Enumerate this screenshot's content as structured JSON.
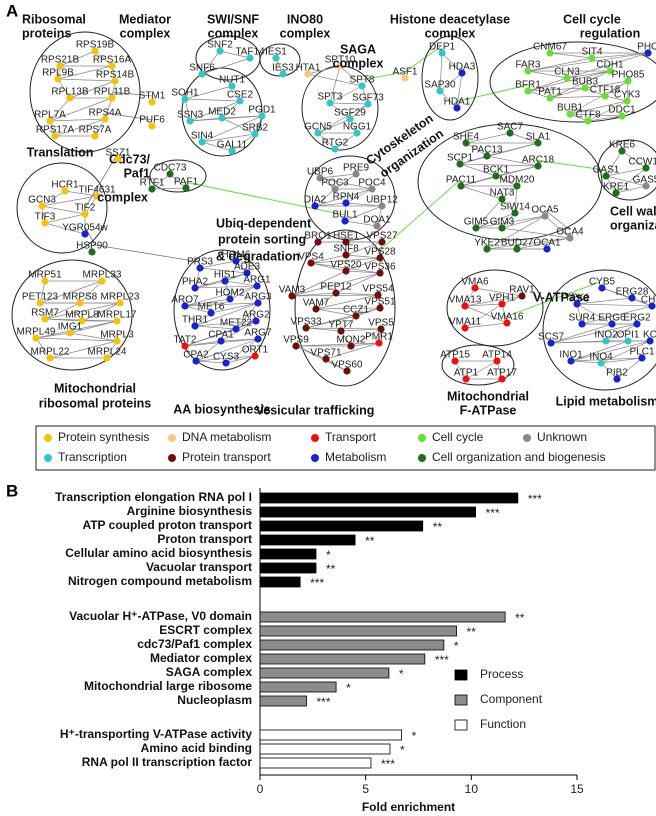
{
  "panel_a": {
    "label": "A",
    "clusters": [
      {
        "title": [
          "Ribosomal",
          "proteins"
        ],
        "nodes": [
          {
            "name": "RPS19B",
            "color": "#f4c20d"
          },
          {
            "name": "RPS21B",
            "color": "#f4c20d"
          },
          {
            "name": "RPS16A",
            "color": "#f4c20d"
          },
          {
            "name": "RPL9B",
            "color": "#f4c20d"
          },
          {
            "name": "RPS14B",
            "color": "#f4c20d"
          },
          {
            "name": "RPL13B",
            "color": "#f4c20d"
          },
          {
            "name": "RPL11B",
            "color": "#f4c20d"
          },
          {
            "name": "RPL7A",
            "color": "#f4c20d"
          },
          {
            "name": "RPS4A",
            "color": "#f4c20d"
          },
          {
            "name": "RPS17A",
            "color": "#f4c20d"
          },
          {
            "name": "RPS7A",
            "color": "#f4c20d"
          }
        ]
      },
      {
        "title": [
          "Mediator",
          "complex"
        ],
        "nodes": [
          {
            "name": "NUT1",
            "color": "#33c6c6"
          },
          {
            "name": "SOH1",
            "color": "#33c6c6"
          },
          {
            "name": "CSE2",
            "color": "#33c6c6"
          },
          {
            "name": "SSN3",
            "color": "#33c6c6"
          },
          {
            "name": "MED2",
            "color": "#33c6c6"
          },
          {
            "name": "PGD1",
            "color": "#33c6c6"
          },
          {
            "name": "SRB2",
            "color": "#33c6c6"
          },
          {
            "name": "SIN4",
            "color": "#33c6c6"
          },
          {
            "name": "GAL11",
            "color": "#33c6c6"
          }
        ]
      },
      {
        "title": [
          "SWI/SNF",
          "complex"
        ],
        "nodes": [
          {
            "name": "SNF2",
            "color": "#33c6c6"
          },
          {
            "name": "TAF14",
            "color": "#33c6c6"
          },
          {
            "name": "SNF6",
            "color": "#33c6c6"
          }
        ]
      },
      {
        "title": [
          "INO80",
          "complex"
        ],
        "nodes": [
          {
            "name": "IES1",
            "color": "#33c6c6"
          },
          {
            "name": "IES3",
            "color": "#33c6c6"
          }
        ]
      },
      {
        "title": [
          "SAGA",
          "complex"
        ],
        "nodes": [
          {
            "name": "HTA1",
            "color": "#f9c77a"
          },
          {
            "name": "SPT10",
            "color": "#f9c77a"
          },
          {
            "name": "SPT8",
            "color": "#33c6c6"
          },
          {
            "name": "SPT3",
            "color": "#33c6c6"
          },
          {
            "name": "SGF73",
            "color": "#33c6c6"
          },
          {
            "name": "SGF29",
            "color": "#33c6c6"
          },
          {
            "name": "GCN5",
            "color": "#33c6c6"
          },
          {
            "name": "NGG1",
            "color": "#33c6c6"
          },
          {
            "name": "RTG2",
            "color": "#33c6c6"
          }
        ]
      },
      {
        "title": [
          "Histone deacetylase",
          "complex"
        ],
        "nodes": [
          {
            "name": "DEP1",
            "color": "#33c6c6"
          },
          {
            "name": "HDA3",
            "color": "#1a22cc"
          },
          {
            "name": "SAP30",
            "color": "#33c6c6"
          },
          {
            "name": "HDA1",
            "color": "#1a22cc"
          }
        ]
      },
      {
        "title": [
          "Cell cycle",
          "regulation"
        ],
        "nodes": [
          {
            "name": "CNM67",
            "color": "#66e033"
          },
          {
            "name": "SIT4",
            "color": "#66e033"
          },
          {
            "name": "PHO",
            "color": "#1a22cc"
          },
          {
            "name": "FAR3",
            "color": "#66e033"
          },
          {
            "name": "CLN3",
            "color": "#66e033"
          },
          {
            "name": "CDH1",
            "color": "#66e033"
          },
          {
            "name": "BFR1",
            "color": "#66e033"
          },
          {
            "name": "PAT1",
            "color": "#66e033"
          },
          {
            "name": "BUB3",
            "color": "#66e033"
          },
          {
            "name": "CTF18",
            "color": "#66e033"
          },
          {
            "name": "PHO85",
            "color": "#66e033"
          },
          {
            "name": "CYK3",
            "color": "#66e033"
          },
          {
            "name": "BUB1",
            "color": "#66e033"
          },
          {
            "name": "CTF8",
            "color": "#66e033"
          },
          {
            "name": "DDC1",
            "color": "#66e033"
          }
        ]
      },
      {
        "title": [
          "Translation"
        ],
        "nodes": [
          {
            "name": "HCR1",
            "color": "#f4c20d"
          },
          {
            "name": "TIF4631",
            "color": "#f4c20d"
          },
          {
            "name": "GCN3",
            "color": "#f4c20d"
          },
          {
            "name": "TIF2",
            "color": "#f4c20d"
          },
          {
            "name": "TIF3",
            "color": "#f4c20d"
          },
          {
            "name": "YGR054w",
            "color": "#1a22cc"
          }
        ]
      },
      {
        "title": [
          "Cdc73/",
          "Paf1",
          "complex"
        ],
        "nodes": [
          {
            "name": "CDC73",
            "color": "#1e6e1e"
          },
          {
            "name": "RTF1",
            "color": "#1e6e1e"
          },
          {
            "name": "PAF1",
            "color": "#1e6e1e"
          }
        ]
      },
      {
        "title": [
          "Cytoskeleton",
          "organization"
        ],
        "nodes": [
          {
            "name": "SAC7",
            "color": "#1e6e1e"
          },
          {
            "name": "SHE4",
            "color": "#1e6e1e"
          },
          {
            "name": "SLA1",
            "color": "#1e6e1e"
          },
          {
            "name": "PAC13",
            "color": "#1e6e1e"
          },
          {
            "name": "SCP1",
            "color": "#1e6e1e"
          },
          {
            "name": "ARC18",
            "color": "#1e6e1e"
          },
          {
            "name": "BCK1",
            "color": "#1e6e1e"
          },
          {
            "name": "PAC11",
            "color": "#1e6e1e"
          },
          {
            "name": "MDM20",
            "color": "#1e6e1e"
          },
          {
            "name": "NAT3",
            "color": "#1e6e1e"
          },
          {
            "name": "SIW14",
            "color": "#1e6e1e"
          },
          {
            "name": "GIM5",
            "color": "#1e6e1e"
          },
          {
            "name": "GIM3",
            "color": "#1e6e1e"
          },
          {
            "name": "OCA5",
            "color": "#888888"
          },
          {
            "name": "OCA4",
            "color": "#888888"
          },
          {
            "name": "YKE2",
            "color": "#1e6e1e"
          },
          {
            "name": "BUD27",
            "color": "#1e6e1e"
          },
          {
            "name": "OCA1",
            "color": "#1a22cc"
          }
        ]
      },
      {
        "title": [
          "Cell wall",
          "organization"
        ],
        "nodes": [
          {
            "name": "KRE6",
            "color": "#1e6e1e"
          },
          {
            "name": "CCW12",
            "color": "#1e6e1e"
          },
          {
            "name": "GAS1",
            "color": "#1e6e1e"
          },
          {
            "name": "KRE1",
            "color": "#1e6e1e"
          },
          {
            "name": "GAS5",
            "color": "#888888"
          }
        ]
      },
      {
        "title": [
          "Ubiq-dependent",
          "protein sorting",
          "& degradation"
        ],
        "nodes": [
          {
            "name": "PRE9",
            "color": "#888888"
          },
          {
            "name": "UBP6",
            "color": "#888888"
          },
          {
            "name": "POC3",
            "color": "#888888"
          },
          {
            "name": "POC4",
            "color": "#888888"
          },
          {
            "name": "DIA2",
            "color": "#1a22cc"
          },
          {
            "name": "RPN4",
            "color": "#1a22cc"
          },
          {
            "name": "UBP12",
            "color": "#888888"
          },
          {
            "name": "BUL1",
            "color": "#1a22cc"
          },
          {
            "name": "DOA1",
            "color": "#888888"
          }
        ]
      },
      {
        "title": [
          "Vesicular trafficking"
        ],
        "nodes": [
          {
            "name": "BRO1",
            "color": "#6e0e0e"
          },
          {
            "name": "HSE1",
            "color": "#6e0e0e"
          },
          {
            "name": "VPS27",
            "color": "#6e0e0e"
          },
          {
            "name": "SNF8",
            "color": "#6e0e0e"
          },
          {
            "name": "VPS28",
            "color": "#6e0e0e"
          },
          {
            "name": "VPS4",
            "color": "#6e0e0e"
          },
          {
            "name": "VPS20",
            "color": "#6e0e0e"
          },
          {
            "name": "VPS36",
            "color": "#6e0e0e"
          },
          {
            "name": "VAM3",
            "color": "#6e0e0e"
          },
          {
            "name": "PEP12",
            "color": "#6e0e0e"
          },
          {
            "name": "VPS54",
            "color": "#6e0e0e"
          },
          {
            "name": "VAM7",
            "color": "#6e0e0e"
          },
          {
            "name": "VPS51",
            "color": "#6e0e0e"
          },
          {
            "name": "CCZ1",
            "color": "#6e0e0e"
          },
          {
            "name": "VPS33",
            "color": "#6e0e0e"
          },
          {
            "name": "YPT7",
            "color": "#6e0e0e"
          },
          {
            "name": "VPS5",
            "color": "#6e0e0e"
          },
          {
            "name": "MON2",
            "color": "#6e0e0e"
          },
          {
            "name": "PMR1",
            "color": "#ee1111"
          },
          {
            "name": "VPS9",
            "color": "#6e0e0e"
          },
          {
            "name": "VPS71",
            "color": "#6e0e0e"
          },
          {
            "name": "VPS60",
            "color": "#6e0e0e"
          }
        ]
      },
      {
        "title": [
          "Mitochondrial",
          "ribosomal proteins"
        ],
        "nodes": [
          {
            "name": "MRP51",
            "color": "#f4c20d"
          },
          {
            "name": "MRPL33",
            "color": "#f4c20d"
          },
          {
            "name": "PET123",
            "color": "#f4c20d"
          },
          {
            "name": "MRPS8",
            "color": "#f4c20d"
          },
          {
            "name": "MRPL23",
            "color": "#f4c20d"
          },
          {
            "name": "RSM7",
            "color": "#f4c20d"
          },
          {
            "name": "MRPL8",
            "color": "#f4c20d"
          },
          {
            "name": "MRPL17",
            "color": "#f4c20d"
          },
          {
            "name": "IMG1",
            "color": "#f4c20d"
          },
          {
            "name": "MRPL49",
            "color": "#f4c20d"
          },
          {
            "name": "MRPL3",
            "color": "#f4c20d"
          },
          {
            "name": "MRPL22",
            "color": "#f4c20d"
          },
          {
            "name": "MRPL24",
            "color": "#f4c20d"
          }
        ]
      },
      {
        "title": [
          "AA biosynthesis"
        ],
        "nodes": [
          {
            "name": "HOM6",
            "color": "#1a22cc"
          },
          {
            "name": "PRS3",
            "color": "#1a22cc"
          },
          {
            "name": "ADE3",
            "color": "#1a22cc"
          },
          {
            "name": "PHA2",
            "color": "#1a22cc"
          },
          {
            "name": "HIS1",
            "color": "#1a22cc"
          },
          {
            "name": "ARG1",
            "color": "#1a22cc"
          },
          {
            "name": "HOM2",
            "color": "#1a22cc"
          },
          {
            "name": "ARO7",
            "color": "#1a22cc"
          },
          {
            "name": "MET6",
            "color": "#1a22cc"
          },
          {
            "name": "ARG3",
            "color": "#1a22cc"
          },
          {
            "name": "THR1",
            "color": "#1a22cc"
          },
          {
            "name": "MET22",
            "color": "#1a22cc"
          },
          {
            "name": "ARG2",
            "color": "#1a22cc"
          },
          {
            "name": "TAT2",
            "color": "#ee1111"
          },
          {
            "name": "CPA1",
            "color": "#1a22cc"
          },
          {
            "name": "ARG7",
            "color": "#1a22cc"
          },
          {
            "name": "CPA2",
            "color": "#1a22cc"
          },
          {
            "name": "CYS3",
            "color": "#1a22cc"
          },
          {
            "name": "ORT1",
            "color": "#ee1111"
          }
        ]
      },
      {
        "title": [
          "V-ATPase"
        ],
        "nodes": [
          {
            "name": "VMA6",
            "color": "#ee1111"
          },
          {
            "name": "RAV1",
            "color": "#6e0e0e"
          },
          {
            "name": "VMA13",
            "color": "#ee1111"
          },
          {
            "name": "VPH1",
            "color": "#ee1111"
          },
          {
            "name": "VMA16",
            "color": "#ee1111"
          },
          {
            "name": "VMA11",
            "color": "#ee1111"
          }
        ]
      },
      {
        "title": [
          "Mitochondrial",
          "F-ATPase"
        ],
        "nodes": [
          {
            "name": "ATP15",
            "color": "#ee1111"
          },
          {
            "name": "ATP14",
            "color": "#ee1111"
          },
          {
            "name": "ATP1",
            "color": "#ee1111"
          },
          {
            "name": "ATP17",
            "color": "#ee1111"
          }
        ]
      },
      {
        "title": [
          "Lipid metabolism"
        ],
        "nodes": [
          {
            "name": "CYB5",
            "color": "#1a22cc"
          },
          {
            "name": "ERG28",
            "color": "#1a22cc"
          },
          {
            "name": "CHO",
            "color": "#1a22cc"
          },
          {
            "name": "YPK1",
            "color": "#1a22cc"
          },
          {
            "name": "SUR4",
            "color": "#1a22cc"
          },
          {
            "name": "ERG6",
            "color": "#1a22cc"
          },
          {
            "name": "ERG2",
            "color": "#1a22cc"
          },
          {
            "name": "SCS7",
            "color": "#1a22cc"
          },
          {
            "name": "INO2",
            "color": "#33c6c6"
          },
          {
            "name": "OPI1",
            "color": "#33c6c6"
          },
          {
            "name": "KC",
            "color": "#1a22cc"
          },
          {
            "name": "INO1",
            "color": "#1a22cc"
          },
          {
            "name": "INO4",
            "color": "#33c6c6"
          },
          {
            "name": "PLC1",
            "color": "#1a22cc"
          },
          {
            "name": "PIB2",
            "color": "#1a22cc"
          }
        ]
      },
      {
        "nodes": [
          {
            "name": "STM1",
            "color": "#f4c20d"
          },
          {
            "name": "PUF6",
            "color": "#f4c20d"
          },
          {
            "name": "SSZ1",
            "color": "#f4c20d"
          },
          {
            "name": "ASF1",
            "color": "#f9c77a"
          },
          {
            "name": "HSP90",
            "color": "#1e6e1e"
          }
        ]
      }
    ],
    "legend": [
      {
        "name": "Protein synthesis",
        "color": "#f4c20d"
      },
      {
        "name": "DNA metabolism",
        "color": "#f9c77a"
      },
      {
        "name": "Transport",
        "color": "#ee1111"
      },
      {
        "name": "Cell cycle",
        "color": "#66e033"
      },
      {
        "name": "Unknown",
        "color": "#888888"
      },
      {
        "name": "Transcription",
        "color": "#33c6c6"
      },
      {
        "name": "Protein transport",
        "color": "#6e0e0e"
      },
      {
        "name": "Metabolism",
        "color": "#1a22cc"
      },
      {
        "name": "Cell organization and biogenesis",
        "color": "#1e6e1e"
      }
    ]
  },
  "chart_data": {
    "type": "bar",
    "orientation": "horizontal",
    "panel_label": "B",
    "xlabel": "Fold enrichment",
    "xlim": [
      0,
      15
    ],
    "xticks": [
      0,
      5,
      10,
      15
    ],
    "series": [
      {
        "name": "Process",
        "color": "#000000",
        "categories": [
          "Transcription elongation RNA pol I",
          "Arginine biosynthesis",
          "ATP coupled proton transport",
          "Proton transport",
          "Cellular amino acid biosynthesis",
          "Vacuolar transport",
          "Nitrogen compound metabolism"
        ],
        "values": [
          12.2,
          10.2,
          7.7,
          4.5,
          2.65,
          2.65,
          1.9
        ],
        "significance": [
          "***",
          "***",
          "**",
          "**",
          "*",
          "**",
          "***"
        ]
      },
      {
        "name": "Component",
        "color": "#8c8c8c",
        "categories": [
          "Vacuolar H⁺-ATPase, V0 domain",
          "ESCRT complex",
          "cdc73/Paf1 complex",
          "Mediator complex",
          "SAGA complex",
          "Mitochondrial large ribosome",
          "Nucleoplasm"
        ],
        "values": [
          11.6,
          9.3,
          8.7,
          7.8,
          6.1,
          3.6,
          2.2
        ],
        "significance": [
          "**",
          "**",
          "*",
          "***",
          "*",
          "*",
          "***"
        ]
      },
      {
        "name": "Function",
        "color": "#ffffff",
        "categories": [
          "H⁺-transporting V-ATPase activity",
          "Amino acid binding",
          "RNA pol II transcription factor"
        ],
        "values": [
          6.7,
          6.15,
          5.25
        ],
        "significance": [
          "*",
          "*",
          "***"
        ]
      }
    ]
  }
}
